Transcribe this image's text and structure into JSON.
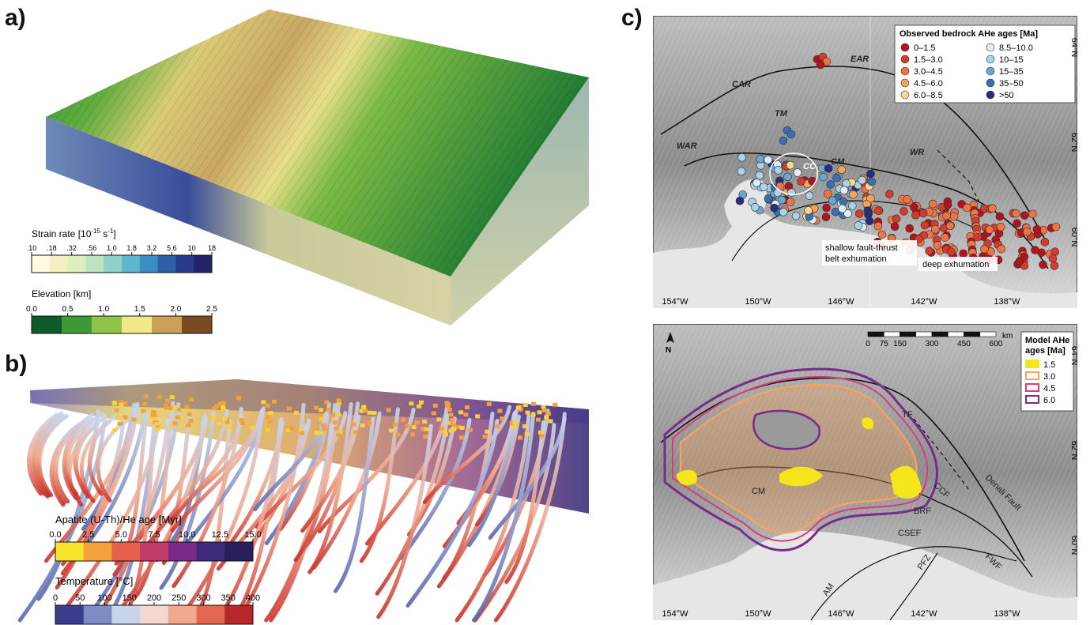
{
  "panel_a": {
    "letter": "a)",
    "strain": {
      "title_main": "Strain rate [10",
      "title_exp1": "-15",
      "title_unit": " s",
      "title_exp2": "-1",
      "title_close": "]",
      "ticks": [
        ".10",
        ".18",
        ".32",
        ".56",
        "1.0",
        "1.8",
        "3.2",
        "5.6",
        "10",
        "18"
      ],
      "colors": [
        "#fffbe0",
        "#f5f0c2",
        "#e0eebd",
        "#bfe3c1",
        "#8fd0cc",
        "#5bb6cf",
        "#3b8ec4",
        "#2c5fa8",
        "#2a3b8a",
        "#22216a"
      ]
    },
    "elevation": {
      "title": "Elevation [km]",
      "ticks": [
        "0.0",
        "0.5",
        "1.0",
        "1.5",
        "2.0",
        "2.5"
      ],
      "colors": [
        "#0e5a2a",
        "#3f9a36",
        "#8fc34a",
        "#f2e88a",
        "#c9a15a",
        "#7a4a22"
      ]
    }
  },
  "panel_b": {
    "letter": "b)",
    "age": {
      "title": "Apatite (U-Th)/He age [Myr]",
      "ticks": [
        "0.0",
        "2.5",
        "5.0",
        "7.5",
        "10.0",
        "12.5",
        "15.0"
      ],
      "colors": [
        "#f7e52a",
        "#f5a13a",
        "#e8604a",
        "#c23a6a",
        "#7a2a8a",
        "#3c2a7a",
        "#2a1f5e"
      ]
    },
    "temperature": {
      "title": "Temperature [°C]",
      "ticks": [
        "0",
        "50",
        "100",
        "150",
        "200",
        "250",
        "300",
        "350",
        "400"
      ],
      "colors": [
        "#3a3c8e",
        "#7f8cc4",
        "#c8d4ea",
        "#f4d8cf",
        "#f1a98e",
        "#e2694f",
        "#b8282a"
      ]
    }
  },
  "panel_c": {
    "letter": "c)",
    "top": {
      "legend_title": "Observed bedrock AHe ages [Ma]",
      "legend_left": [
        {
          "label": "0–1.5",
          "color": "#b3131b"
        },
        {
          "label": "1.5–3.0",
          "color": "#d63a2a"
        },
        {
          "label": "3.0–4.5",
          "color": "#ee7445"
        },
        {
          "label": "4.5–6.0",
          "color": "#f7a35a"
        },
        {
          "label": "6.0–8.5",
          "color": "#fcd98a"
        }
      ],
      "legend_right": [
        {
          "label": "8.5–10.0",
          "color": "#dceef7"
        },
        {
          "label": "10–15",
          "color": "#a9d3e8"
        },
        {
          "label": "15–35",
          "color": "#6ca7d2"
        },
        {
          "label": "35–50",
          "color": "#3a6fb0"
        },
        {
          "label": ">50",
          "color": "#24307e"
        }
      ],
      "regions": [
        "EAR",
        "CAR",
        "TM",
        "WAR",
        "CC",
        "CM",
        "WR"
      ],
      "annotations": [
        "shallow fault-thrust",
        "belt exhumation",
        "deep exhumation"
      ],
      "lon_labels": [
        "154°W",
        "150°W",
        "146°W",
        "142°W",
        "138°W"
      ],
      "lat_labels": [
        "64°N",
        "62°N",
        "60°N"
      ]
    },
    "bottom": {
      "north": "N",
      "scale_ticks": [
        "0",
        "75",
        "150",
        "300",
        "450",
        "600"
      ],
      "scale_unit": "km",
      "legend_title_1": "Model AHe",
      "legend_title_2": "ages [Ma]",
      "legend": [
        {
          "label": "1.5",
          "color": "#f5e51b",
          "fill": true
        },
        {
          "label": "3.0",
          "color": "#f7a35a",
          "fill": false
        },
        {
          "label": "4.5",
          "color": "#de3a7a",
          "fill": false
        },
        {
          "label": "6.0",
          "color": "#7a2a8a",
          "fill": false
        }
      ],
      "faults": [
        "TF",
        "CCF",
        "Denali Fault",
        "BRF",
        "CSEF",
        "PFZ",
        "FWF",
        "AM",
        "CM"
      ],
      "lon_labels": [
        "154°W",
        "150°W",
        "146°W",
        "142°W",
        "138°W"
      ],
      "lat_labels": [
        "64°N",
        "62°N",
        "60°N"
      ]
    }
  }
}
